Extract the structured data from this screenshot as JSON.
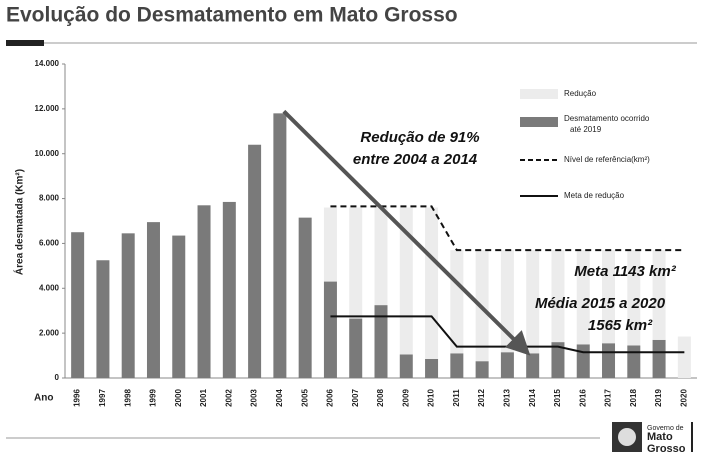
{
  "chart_data": {
    "type": "bar",
    "title": "Evolução do Desmatamento  em Mato Grosso",
    "y_label": "Área desmatada (Km²)",
    "x_label": "Ano",
    "categories": [
      "1996",
      "1997",
      "1998",
      "1999",
      "2000",
      "2001",
      "2002",
      "2003",
      "2004",
      "2005",
      "2006",
      "2007",
      "2008",
      "2009",
      "2010",
      "2011",
      "2012",
      "2013",
      "2014",
      "2015",
      "2016",
      "2017",
      "2018",
      "2019",
      "2020"
    ],
    "series": [
      {
        "name": "Desmatamento ocorrido até 2019",
        "type": "bar",
        "color": "#7a7a7a",
        "values": [
          6500,
          5250,
          6450,
          6950,
          6350,
          7700,
          7850,
          10400,
          11800,
          7150,
          4300,
          2650,
          3250,
          1050,
          850,
          1100,
          750,
          1150,
          1100,
          1600,
          1500,
          1550,
          1450,
          1700,
          null
        ]
      },
      {
        "name": "Redução",
        "type": "bar",
        "color": "#ececec",
        "values": [
          null,
          null,
          null,
          null,
          null,
          null,
          null,
          null,
          null,
          null,
          3300,
          4950,
          4350,
          6550,
          6750,
          4600,
          4950,
          4550,
          4600,
          4100,
          4200,
          4150,
          4250,
          4000,
          1850
        ]
      },
      {
        "name": "Nível de referência(km²)",
        "type": "line",
        "dashed": true,
        "color": "#111111",
        "values": [
          null,
          null,
          null,
          null,
          null,
          null,
          null,
          null,
          null,
          null,
          7650,
          7650,
          7650,
          7650,
          7650,
          5700,
          5700,
          5700,
          5700,
          5700,
          5700,
          5700,
          5700,
          5700,
          5700
        ]
      },
      {
        "name": "Meta de redução",
        "type": "line",
        "dashed": false,
        "color": "#111111",
        "values": [
          null,
          null,
          null,
          null,
          null,
          null,
          null,
          null,
          null,
          null,
          2750,
          2750,
          2750,
          2750,
          2750,
          1400,
          1400,
          1400,
          1400,
          1400,
          1150,
          1150,
          1150,
          1150,
          1150
        ]
      }
    ],
    "ylim": [
      0,
      14000
    ],
    "yticks": [
      0,
      {
        "value": 2000,
        "label": "2.000"
      },
      {
        "value": 4000,
        "label": "4.000"
      },
      {
        "value": 6000,
        "label": "6.000"
      },
      {
        "value": 8000,
        "label": "8.000"
      },
      {
        "value": 10000,
        "label": "10.000"
      },
      {
        "value": 12000,
        "label": "12.000"
      },
      {
        "value": 14000,
        "label": "14.000"
      }
    ],
    "annotations": [
      "Redução de 91%",
      "entre 2004 a 2014",
      "Meta 1143 km²",
      "Média 2015 a 2020",
      "1565 km²"
    ]
  },
  "logo": {
    "line1": "Governo de",
    "line2": "Mato",
    "line3": "Grosso"
  }
}
